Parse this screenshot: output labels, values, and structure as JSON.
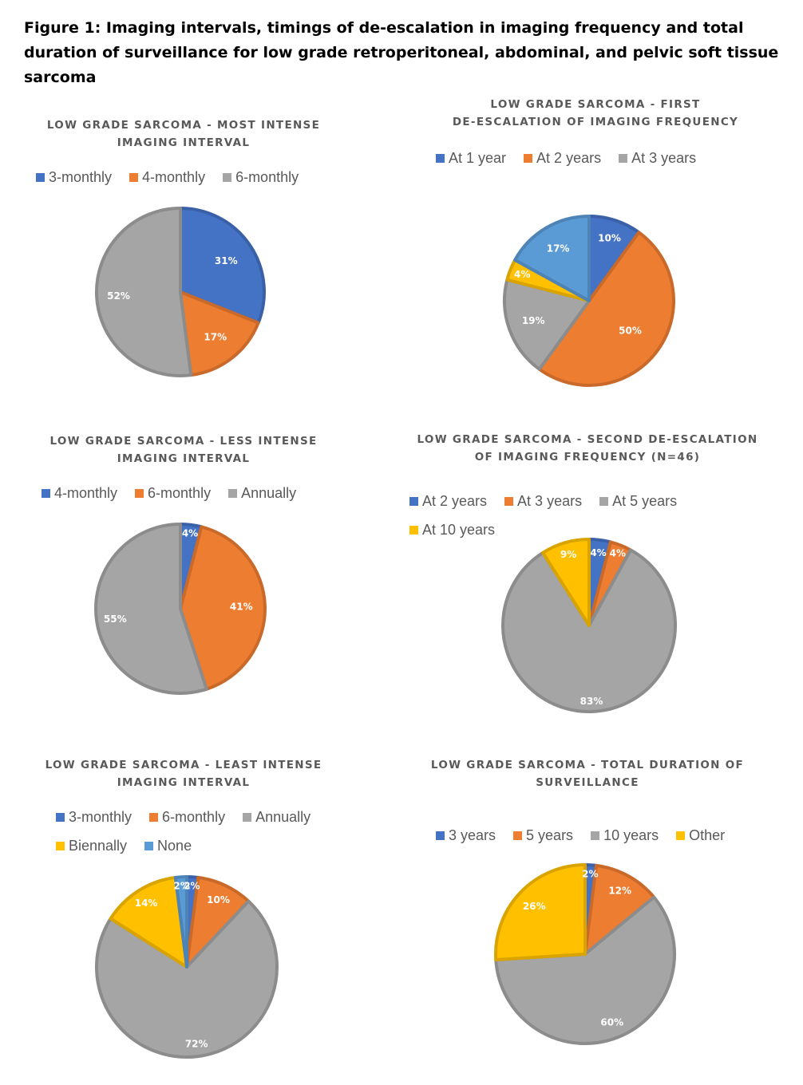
{
  "figure": {
    "title": "Figure 1: Imaging intervals, timings of de-escalation in imaging frequency and total duration of surveillance for low grade retroperitoneal, abdominal, and pelvic soft tissue sarcoma"
  },
  "chart_data": [
    {
      "type": "pie",
      "title_lines": [
        "LOW GRADE SARCOMA - MOST INTENSE",
        "IMAGING INTERVAL"
      ],
      "legend_position": "top",
      "categories": [
        "3-monthly",
        "4-monthly",
        "6-monthly"
      ],
      "values": [
        31,
        17,
        52
      ],
      "labels": [
        "31%",
        "17%",
        "52%"
      ],
      "colors": [
        "#4472C4",
        "#ED7D31",
        "#A5A5A5"
      ],
      "legend_indices": [
        0,
        1,
        2
      ],
      "legend_rows": [
        [
          0,
          1,
          2
        ]
      ]
    },
    {
      "type": "pie",
      "title_lines": [
        "LOW GRADE SARCOMA - FIRST",
        "DE-ESCALATION OF IMAGING FREQUENCY"
      ],
      "legend_position": "top",
      "categories": [
        "At 1 year",
        "At 2 years",
        "At 3 years",
        "",
        ""
      ],
      "values": [
        10,
        50,
        19,
        4,
        17
      ],
      "labels": [
        "10%",
        "50%",
        "19%",
        "4%",
        "17%"
      ],
      "colors": [
        "#4472C4",
        "#ED7D31",
        "#A5A5A5",
        "#FFC000",
        "#5B9BD5"
      ],
      "legend_indices": [
        0,
        1,
        2
      ],
      "legend_rows": [
        [
          0,
          1,
          2
        ]
      ]
    },
    {
      "type": "pie",
      "title_lines": [
        "LOW GRADE SARCOMA - LESS INTENSE",
        "IMAGING INTERVAL"
      ],
      "legend_position": "top",
      "categories": [
        "4-monthly",
        "6-monthly",
        "Annually"
      ],
      "values": [
        4,
        41,
        55
      ],
      "labels": [
        "4%",
        "41%",
        "55%"
      ],
      "colors": [
        "#4472C4",
        "#ED7D31",
        "#A5A5A5"
      ],
      "legend_indices": [
        0,
        1,
        2
      ],
      "legend_rows": [
        [
          0,
          1,
          2
        ]
      ]
    },
    {
      "type": "pie",
      "title_lines": [
        "LOW GRADE SARCOMA - SECOND DE-ESCALATION",
        "OF IMAGING FREQUENCY (N=46)"
      ],
      "legend_position": "top",
      "categories": [
        "At 2 years",
        "At 3 years",
        "At 5 years",
        "At 10 years"
      ],
      "values": [
        4,
        4,
        83,
        9
      ],
      "labels": [
        "4%",
        "4%",
        "83%",
        "9%"
      ],
      "colors": [
        "#4472C4",
        "#ED7D31",
        "#A5A5A5",
        "#FFC000"
      ],
      "legend_indices": [
        0,
        1,
        2,
        3
      ],
      "legend_rows": [
        [
          0,
          1,
          2,
          3
        ]
      ]
    },
    {
      "type": "pie",
      "title_lines": [
        "LOW GRADE SARCOMA - LEAST INTENSE",
        "IMAGING INTERVAL"
      ],
      "legend_position": "top",
      "categories": [
        "3-monthly",
        "6-monthly",
        "Annually",
        "Biennally",
        "None"
      ],
      "values": [
        2,
        10,
        72,
        14,
        2
      ],
      "labels": [
        "2%",
        "10%",
        "72%",
        "14%",
        "2%"
      ],
      "colors": [
        "#4472C4",
        "#ED7D31",
        "#A5A5A5",
        "#FFC000",
        "#5B9BD5"
      ],
      "legend_indices": [
        0,
        1,
        2,
        3,
        4
      ],
      "legend_rows": [
        [
          0,
          1,
          2
        ],
        [
          3,
          4
        ]
      ]
    },
    {
      "type": "pie",
      "title_lines": [
        "LOW GRADE SARCOMA - TOTAL DURATION OF",
        "SURVEILLANCE"
      ],
      "legend_position": "top",
      "categories": [
        "3 years",
        "5 years",
        "10 years",
        "Other"
      ],
      "values": [
        2,
        12,
        60,
        26
      ],
      "labels": [
        "2%",
        "12%",
        "60%",
        "26%"
      ],
      "colors": [
        "#4472C4",
        "#ED7D31",
        "#A5A5A5",
        "#FFC000"
      ],
      "legend_indices": [
        0,
        1,
        2,
        3
      ],
      "legend_rows": [
        [
          0,
          1,
          2,
          3
        ]
      ]
    }
  ]
}
